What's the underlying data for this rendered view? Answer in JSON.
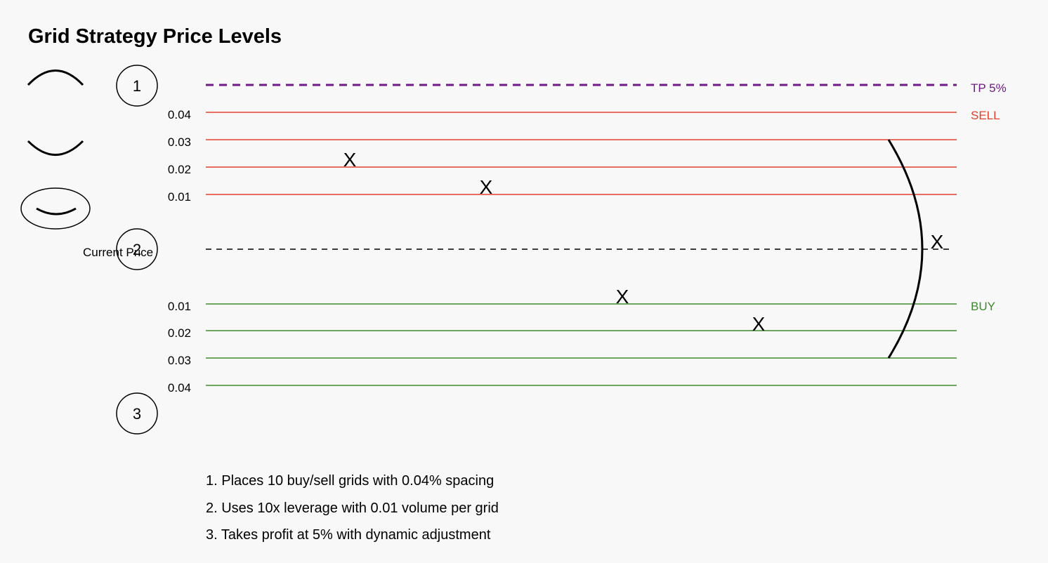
{
  "title": "Grid Strategy Price Levels",
  "colors": {
    "sell": "#e2412b",
    "buy": "#3d8a2c",
    "take_profit": "#6f1a86",
    "current_price": "#000000",
    "background": "#f8f8f8"
  },
  "levels": {
    "take_profit_label": "TP 5%",
    "sell_label": "SELL",
    "buy_label": "BUY",
    "current_price_label": "Current Price",
    "sell_ticks": [
      "0.04",
      "0.03",
      "0.02",
      "0.01"
    ],
    "buy_ticks": [
      "0.01",
      "0.02",
      "0.03",
      "0.04"
    ]
  },
  "markers": [
    "X",
    "X",
    "X",
    "X",
    "X"
  ],
  "step_numbers": [
    "1",
    "2",
    "3"
  ],
  "side_icons": [
    "frown-mouth-icon",
    "smile-mouth-icon",
    "smiley-face-icon"
  ],
  "notes": [
    "1. Places 10 buy/sell grids with 0.04% spacing",
    "2. Uses 10x leverage with 0.01 volume per grid",
    "3. Takes profit at 5% with dynamic adjustment"
  ]
}
